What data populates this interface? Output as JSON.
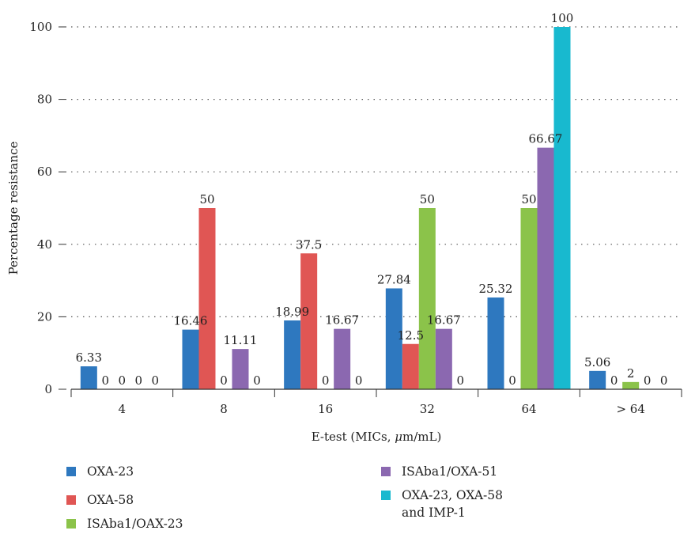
{
  "chart_data": {
    "type": "bar",
    "xlabel_prefix": "E-test (MICs, ",
    "xlabel_italic": "μ",
    "xlabel_suffix": "m/mL)",
    "ylabel": "Percentage resistance",
    "ylim": [
      0,
      100
    ],
    "yticks": [
      "0",
      "20",
      "40",
      "60",
      "80",
      "100"
    ],
    "grid": "horizontal dotted",
    "categories": [
      "4",
      "8",
      "16",
      "32",
      "64",
      "> 64"
    ],
    "series": [
      {
        "name": "OXA-23",
        "color": "#2e78bf",
        "values": [
          6.33,
          16.46,
          18.99,
          27.84,
          25.32,
          5.06
        ],
        "labels": [
          "6.33",
          "16.46",
          "18.99",
          "27.84",
          "25.32",
          "5.06"
        ]
      },
      {
        "name": "OXA-58",
        "color": "#e05654",
        "values": [
          0,
          50,
          37.5,
          12.5,
          0,
          0
        ],
        "labels": [
          "0",
          "50",
          "37.5",
          "12.5",
          "0",
          "0"
        ]
      },
      {
        "name": "ISAba1/OAX-23",
        "color": "#8bc34a",
        "values": [
          0,
          0,
          0,
          50,
          50,
          2
        ],
        "labels": [
          "0",
          "0",
          "0",
          "50",
          "50",
          "2"
        ]
      },
      {
        "name": "ISAba1/OXA-51",
        "color": "#8b68b0",
        "values": [
          0,
          11.11,
          16.67,
          16.67,
          66.67,
          0
        ],
        "labels": [
          "0",
          "11.11",
          "16.67",
          "16.67",
          "66.67",
          "0"
        ]
      },
      {
        "name": "OXA-23, OXA-58\nand IMP-1",
        "color": "#18b9cf",
        "values": [
          0,
          0,
          0,
          0,
          100,
          0
        ],
        "labels": [
          "0",
          "0",
          "0",
          "0",
          "100",
          "0"
        ]
      }
    ],
    "legend_position": "bottom, two columns"
  }
}
